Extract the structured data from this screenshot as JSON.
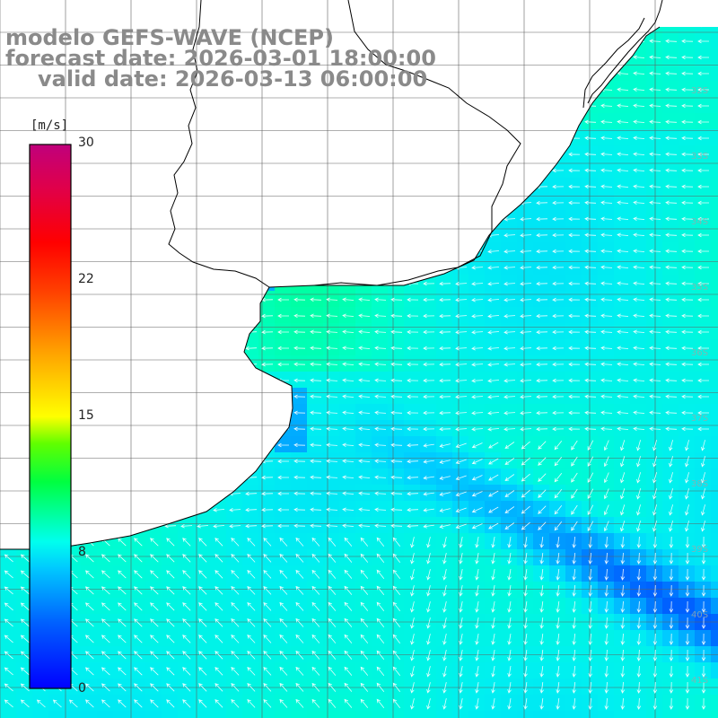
{
  "title": {
    "line1": "modelo GEFS-WAVE (NCEP)",
    "line2": "forecast date: 2026-03-01 18:00:00",
    "line3": "valid date: 2026-03-13 06:00:00"
  },
  "colorbar": {
    "units": "[m/s]",
    "ticks": [
      {
        "value": 30,
        "label": "30"
      },
      {
        "value": 22,
        "label": "22"
      },
      {
        "value": 15,
        "label": "15"
      },
      {
        "value": 8,
        "label": "8"
      },
      {
        "value": 0,
        "label": "0"
      }
    ],
    "range": [
      0,
      30
    ],
    "colors": [
      "#0000ff",
      "#00a0ff",
      "#00ffff",
      "#00ff60",
      "#60ff00",
      "#ffff00",
      "#ff8000",
      "#ff0000",
      "#c00060",
      "#c00080"
    ]
  },
  "map": {
    "land_color": "#ffffff",
    "coastline_color": "#000000",
    "grid_color": "#606060",
    "arrow_color": "#ffffff",
    "right_lat_labels": [
      "32S",
      "33S",
      "34S",
      "35S",
      "36S",
      "37S",
      "38S",
      "39S",
      "40S",
      "41S"
    ]
  }
}
